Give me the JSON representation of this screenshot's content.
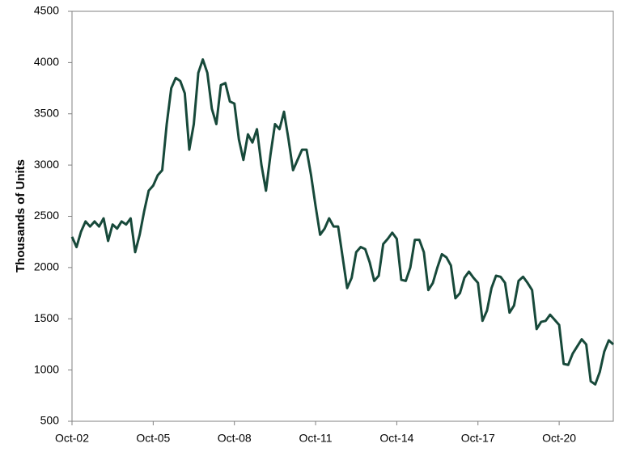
{
  "chart_data": {
    "type": "line",
    "ylabel": "Thousands of Units",
    "categories": [
      "Oct-02",
      null,
      null,
      null,
      null,
      null,
      null,
      null,
      null,
      null,
      null,
      null,
      null,
      null,
      null,
      null,
      null,
      null,
      "Oct-05",
      null,
      null,
      null,
      null,
      null,
      null,
      null,
      null,
      null,
      null,
      null,
      null,
      null,
      null,
      null,
      null,
      null,
      "Oct-08",
      null,
      null,
      null,
      null,
      null,
      null,
      null,
      null,
      null,
      null,
      null,
      null,
      null,
      null,
      null,
      null,
      null,
      "Oct-11",
      null,
      null,
      null,
      null,
      null,
      null,
      null,
      null,
      null,
      null,
      null,
      null,
      null,
      null,
      null,
      null,
      null,
      "Oct-14",
      null,
      null,
      null,
      null,
      null,
      null,
      null,
      null,
      null,
      null,
      null,
      null,
      null,
      null,
      null,
      null,
      null,
      "Oct-17",
      null,
      null,
      null,
      null,
      null,
      null,
      null,
      null,
      null,
      null,
      null,
      null,
      null,
      null,
      null,
      null,
      null,
      "Oct-20",
      null,
      null,
      null,
      null,
      null,
      null,
      null,
      null,
      null,
      null,
      null,
      null
    ],
    "values": [
      2300,
      2200,
      2350,
      2450,
      2400,
      2450,
      2400,
      2480,
      2260,
      2420,
      2380,
      2450,
      2420,
      2480,
      2150,
      2320,
      2550,
      2750,
      2800,
      2900,
      2950,
      3400,
      3750,
      3850,
      3820,
      3700,
      3150,
      3400,
      3900,
      4030,
      3900,
      3550,
      3400,
      3780,
      3800,
      3620,
      3600,
      3250,
      3050,
      3300,
      3220,
      3350,
      3000,
      2750,
      3100,
      3400,
      3350,
      3520,
      3250,
      2950,
      3050,
      3150,
      3150,
      2900,
      2600,
      2320,
      2380,
      2480,
      2400,
      2400,
      2100,
      1800,
      1900,
      2150,
      2200,
      2180,
      2050,
      1870,
      1920,
      2230,
      2280,
      2340,
      2280,
      1880,
      1870,
      2000,
      2270,
      2270,
      2150,
      1780,
      1850,
      2000,
      2130,
      2100,
      2020,
      1700,
      1750,
      1900,
      1960,
      1900,
      1850,
      1480,
      1580,
      1800,
      1920,
      1910,
      1850,
      1560,
      1630,
      1870,
      1910,
      1850,
      1780,
      1400,
      1470,
      1480,
      1540,
      1490,
      1440,
      1060,
      1050,
      1160,
      1230,
      1300,
      1250,
      890,
      860,
      980,
      1180,
      1290,
      1250
    ],
    "color": "#17493a",
    "ylim": [
      500,
      4500
    ],
    "yticks": [
      500,
      1000,
      1500,
      2000,
      2500,
      3000,
      3500,
      4000,
      4500
    ]
  }
}
